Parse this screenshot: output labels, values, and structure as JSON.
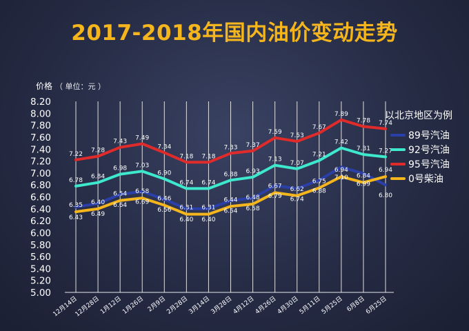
{
  "title": "2017-2018年国内油价变动走势",
  "ylabel": "价格",
  "unit": "（ 单位：元 ）",
  "chart_data": {
    "type": "line",
    "title": "2017-2018年国内油价变动走势",
    "ylabel": "价格（单位：元）",
    "xlabel": "",
    "ylim": [
      5.0,
      8.2
    ],
    "yticks": [
      "8.20",
      "8.00",
      "7.80",
      "7.60",
      "7.40",
      "7.20",
      "7.00",
      "6.80",
      "6.60",
      "6.40",
      "6.20",
      "6.00",
      "5.80",
      "5.60",
      "5.40",
      "5.20",
      "5.00"
    ],
    "categories": [
      "12月14日",
      "12月28日",
      "1月12日",
      "1月26日",
      "2月9日",
      "2月28日",
      "3月14日",
      "3月28日",
      "4月12日",
      "4月26日",
      "4月30日",
      "5月11日",
      "5月25日",
      "6月8日",
      "6月25日"
    ],
    "legend_title": "以北京地区为例",
    "legend_position": "right",
    "series": [
      {
        "name": "89号汽油",
        "color": "#2a3fa8",
        "values": [
          6.43,
          6.49,
          6.64,
          6.69,
          6.56,
          6.4,
          6.4,
          6.54,
          6.58,
          6.79,
          6.74,
          6.88,
          7.1,
          6.99,
          6.8
        ]
      },
      {
        "name": "92号汽油",
        "color": "#3ee8cc",
        "values": [
          6.78,
          6.84,
          6.98,
          7.03,
          6.9,
          6.74,
          6.74,
          6.88,
          6.93,
          7.13,
          7.07,
          7.21,
          7.42,
          7.31,
          7.27
        ]
      },
      {
        "name": "95号汽油",
        "color": "#e02b2b",
        "values": [
          7.22,
          7.28,
          7.43,
          7.49,
          7.34,
          7.18,
          7.18,
          7.33,
          7.37,
          7.59,
          7.53,
          7.67,
          7.89,
          7.78,
          7.74
        ]
      },
      {
        "name": "0号柴油",
        "color": "#f5b51d",
        "values": [
          6.35,
          6.4,
          6.54,
          6.58,
          6.46,
          6.31,
          6.31,
          6.44,
          6.48,
          6.67,
          6.62,
          6.75,
          6.94,
          6.84,
          6.94
        ]
      }
    ]
  }
}
